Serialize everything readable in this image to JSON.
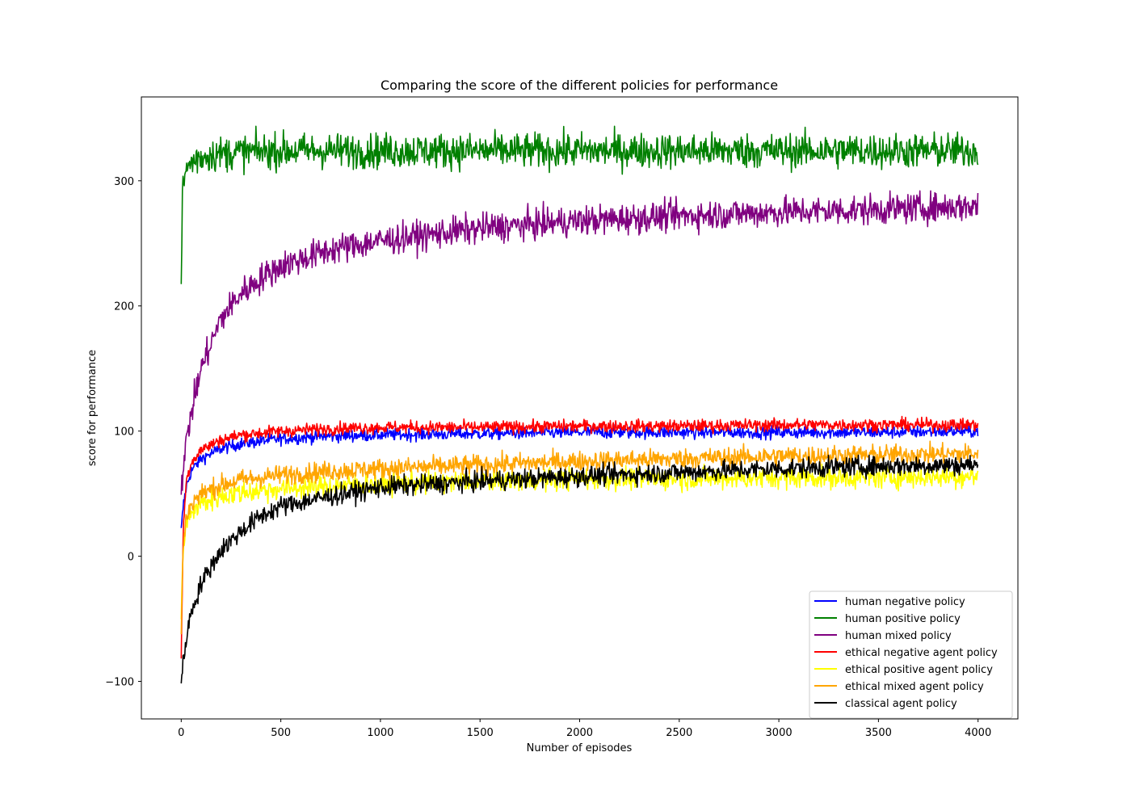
{
  "chart_data": {
    "type": "line",
    "title": "Comparing the score of the different policies for performance",
    "xlabel": "Number of episodes",
    "ylabel": "score for performance",
    "xlim": [
      -200,
      4200
    ],
    "ylim": [
      -130,
      367
    ],
    "xticks": [
      0,
      500,
      1000,
      1500,
      2000,
      2500,
      3000,
      3500,
      4000
    ],
    "yticks": [
      -100,
      0,
      100,
      200,
      300
    ],
    "grid": false,
    "legend_position": "lower right",
    "series": [
      {
        "name": "human negative policy",
        "color": "#0000ff",
        "noise": 2.5,
        "x": [
          0,
          10,
          25,
          50,
          100,
          200,
          300,
          500,
          750,
          1000,
          1500,
          2000,
          2500,
          3000,
          3500,
          4000
        ],
        "y": [
          20,
          40,
          55,
          68,
          78,
          86,
          90,
          94,
          96,
          97,
          98,
          99,
          99,
          99,
          99,
          100
        ]
      },
      {
        "name": "human positive policy",
        "color": "#008000",
        "noise": 7,
        "x": [
          0,
          5,
          10,
          20,
          40,
          80,
          150,
          300,
          500,
          1000,
          2000,
          3000,
          4000
        ],
        "y": [
          225,
          280,
          295,
          305,
          313,
          318,
          321,
          323,
          324,
          324,
          324,
          324,
          324
        ]
      },
      {
        "name": "human mixed policy",
        "color": "#800080",
        "noise": 6,
        "x": [
          0,
          25,
          50,
          100,
          200,
          300,
          400,
          500,
          750,
          1000,
          1500,
          2000,
          2500,
          3000,
          3500,
          4000
        ],
        "y": [
          55,
          90,
          115,
          150,
          190,
          210,
          222,
          232,
          245,
          252,
          262,
          268,
          272,
          275,
          277,
          280
        ]
      },
      {
        "name": "ethical negative agent policy",
        "color": "#ff0000",
        "noise": 2.5,
        "x": [
          0,
          10,
          25,
          50,
          100,
          200,
          300,
          500,
          750,
          1000,
          1500,
          2000,
          2500,
          3000,
          3500,
          4000
        ],
        "y": [
          -80,
          20,
          60,
          75,
          85,
          93,
          97,
          100,
          102,
          103,
          103,
          104,
          104,
          105,
          105,
          105
        ]
      },
      {
        "name": "ethical positive agent policy",
        "color": "#ffff00",
        "noise": 4.5,
        "x": [
          0,
          10,
          25,
          50,
          100,
          200,
          300,
          500,
          750,
          1000,
          1500,
          2000,
          2500,
          3000,
          3500,
          4000
        ],
        "y": [
          -50,
          5,
          25,
          35,
          42,
          48,
          51,
          54,
          56,
          58,
          60,
          62,
          62,
          63,
          63,
          64
        ]
      },
      {
        "name": "ethical mixed agent policy",
        "color": "#ffa500",
        "noise": 4,
        "x": [
          0,
          10,
          25,
          50,
          100,
          200,
          300,
          500,
          750,
          1000,
          1500,
          2000,
          2500,
          3000,
          3500,
          4000
        ],
        "y": [
          -60,
          10,
          30,
          42,
          50,
          57,
          61,
          65,
          68,
          70,
          73,
          76,
          78,
          80,
          81,
          82
        ]
      },
      {
        "name": "classical agent policy",
        "color": "#000000",
        "noise": 4,
        "x": [
          0,
          25,
          50,
          100,
          150,
          200,
          300,
          400,
          500,
          750,
          1000,
          1500,
          2000,
          2500,
          3000,
          3500,
          4000
        ],
        "y": [
          -100,
          -65,
          -45,
          -22,
          -8,
          5,
          20,
          32,
          40,
          48,
          55,
          60,
          64,
          67,
          70,
          72,
          73
        ]
      }
    ]
  }
}
